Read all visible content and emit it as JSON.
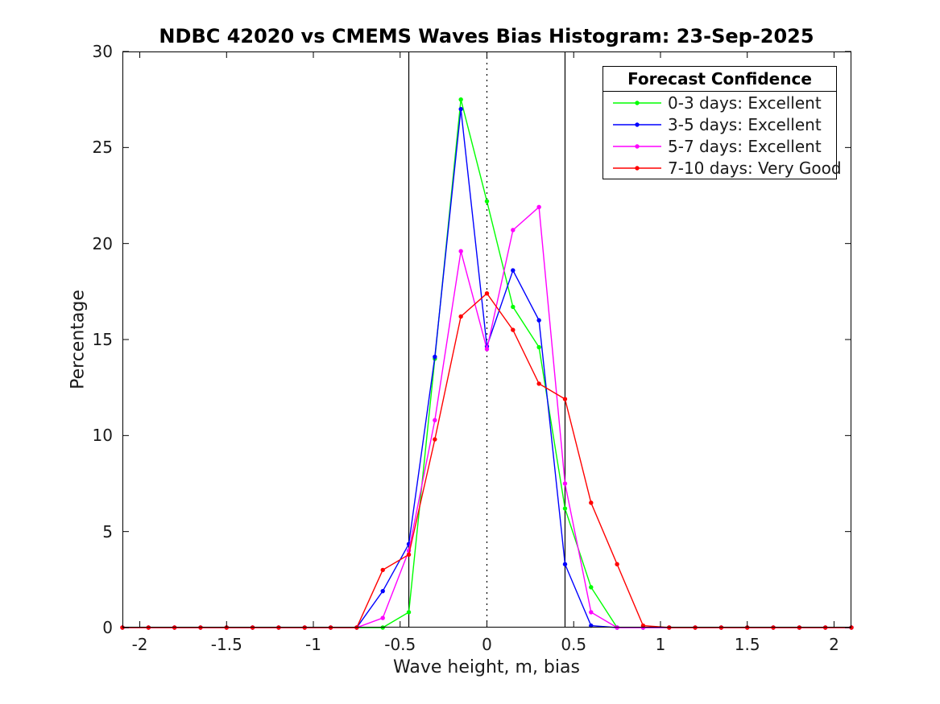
{
  "chart_data": {
    "type": "line",
    "title": "NDBC 42020 vs CMEMS Waves Bias Histogram: 23-Sep-2025",
    "xlabel": "Wave height, m, bias",
    "ylabel": "Percentage",
    "xlim": [
      -2.1,
      2.1
    ],
    "ylim": [
      0,
      30
    ],
    "grid": false,
    "xticks": [
      -2,
      -1.5,
      -1,
      -0.5,
      0,
      0.5,
      1,
      1.5,
      2
    ],
    "xtick_labels": [
      "-2",
      "-1.5",
      "-1",
      "-0.5",
      "0",
      "0.5",
      "1",
      "1.5",
      "2"
    ],
    "yticks": [
      0,
      5,
      10,
      15,
      20,
      25,
      30
    ],
    "ytick_labels": [
      "0",
      "5",
      "10",
      "15",
      "20",
      "25",
      "30"
    ],
    "legend": {
      "title": "Forecast Confidence",
      "position": "top-right"
    },
    "ref_lines": [
      {
        "x": -0.45,
        "style": "solid",
        "color": "#000000"
      },
      {
        "x": 0,
        "style": "dotted",
        "color": "#000000"
      },
      {
        "x": 0.45,
        "style": "solid",
        "color": "#000000"
      }
    ],
    "x": [
      -2.1,
      -1.95,
      -1.8,
      -1.65,
      -1.5,
      -1.35,
      -1.2,
      -1.05,
      -0.9,
      -0.75,
      -0.6,
      -0.45,
      -0.3,
      -0.15,
      0,
      0.15,
      0.3,
      0.45,
      0.6,
      0.75,
      0.9,
      1.05,
      1.2,
      1.35,
      1.5,
      1.65,
      1.8,
      1.95,
      2.1
    ],
    "series": [
      {
        "name": "0-3 days: Excellent",
        "color": "#00ff00",
        "values": [
          0,
          0,
          0,
          0,
          0,
          0,
          0,
          0,
          0,
          0,
          0,
          0.8,
          14.0,
          27.5,
          22.2,
          16.7,
          14.6,
          6.2,
          2.1,
          0,
          0,
          0,
          0,
          0,
          0,
          0,
          0,
          0,
          0
        ]
      },
      {
        "name": "3-5 days: Excellent",
        "color": "#0000ff",
        "values": [
          0,
          0,
          0,
          0,
          0,
          0,
          0,
          0,
          0,
          0,
          1.9,
          4.35,
          14.1,
          27.0,
          14.65,
          18.6,
          16.0,
          3.3,
          0.1,
          0,
          0,
          0,
          0,
          0,
          0,
          0,
          0,
          0,
          0
        ]
      },
      {
        "name": "5-7 days: Excellent",
        "color": "#ff00ff",
        "values": [
          0,
          0,
          0,
          0,
          0,
          0,
          0,
          0,
          0,
          0,
          0.5,
          4.0,
          10.8,
          19.6,
          14.5,
          20.7,
          21.9,
          7.5,
          0.8,
          0,
          0,
          0,
          0,
          0,
          0,
          0,
          0,
          0,
          0
        ]
      },
      {
        "name": "7-10 days: Very Good",
        "color": "#ff0000",
        "values": [
          0,
          0,
          0,
          0,
          0,
          0,
          0,
          0,
          0,
          0,
          3.0,
          3.8,
          9.8,
          16.2,
          17.4,
          15.5,
          12.7,
          11.9,
          6.5,
          3.3,
          0.1,
          0,
          0,
          0,
          0,
          0,
          0,
          0,
          0
        ]
      }
    ]
  }
}
